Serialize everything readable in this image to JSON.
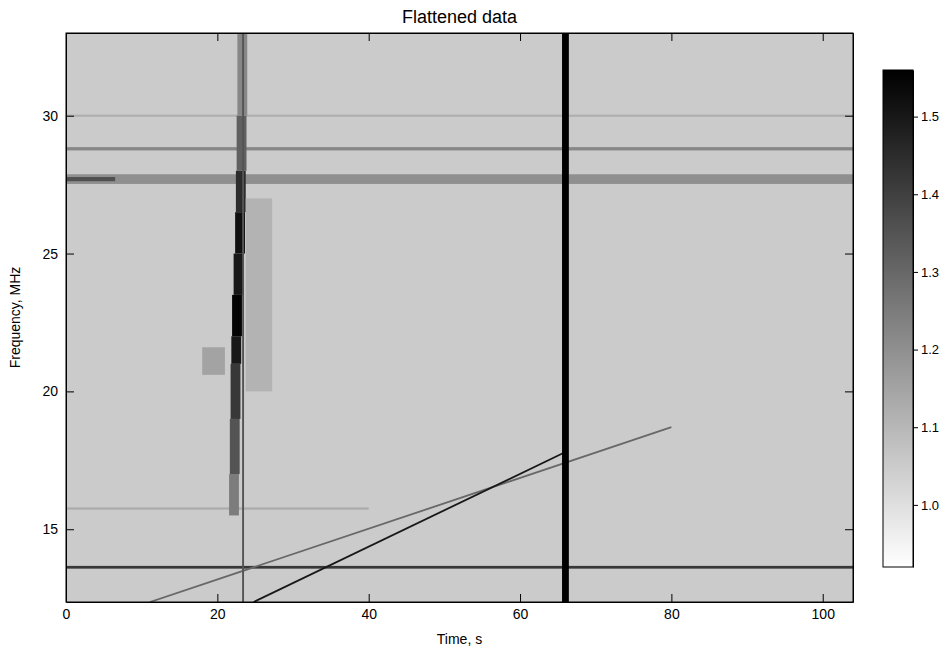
{
  "chart_data": {
    "type": "spectrogram",
    "title": "Flattened data",
    "x_label": "Time, s",
    "y_label": "Frequency, MHz",
    "xlim": [
      0,
      104
    ],
    "xticks": [
      0,
      20,
      40,
      60,
      80,
      100
    ],
    "ylim": [
      12.36,
      33
    ],
    "yticks": [
      15,
      20,
      25,
      30
    ],
    "background": 1.05,
    "colorbar": {
      "range": [
        0.92,
        1.56
      ],
      "ticks": [
        {
          "value": 1,
          "label": "1.0"
        },
        1.1,
        1.2,
        1.3,
        1.4,
        1.5
      ]
    },
    "bands": [
      {
        "freq": 13.62,
        "width": 0.1,
        "t_start": 0,
        "t_end": 104,
        "value": 1.42
      },
      {
        "freq": 15.75,
        "width": 0.08,
        "t_start": 0,
        "t_end": 40,
        "value": 1.13
      },
      {
        "freq": 27.7,
        "width": 0.35,
        "t_start": 0,
        "t_end": 104,
        "value": 1.2
      },
      {
        "freq": 27.7,
        "width": 0.15,
        "t_start": 0,
        "t_end": 6.5,
        "value": 1.36
      },
      {
        "freq": 28.8,
        "width": 0.12,
        "t_start": 0,
        "t_end": 104,
        "value": 1.22
      },
      {
        "freq": 30.0,
        "width": 0.08,
        "t_start": 0,
        "t_end": 104,
        "value": 1.12
      }
    ],
    "burst": [
      {
        "time": 22.2,
        "duration": 1.3,
        "freq_lo": 15.5,
        "freq_hi": 17,
        "value": 1.25
      },
      {
        "time": 22.3,
        "duration": 1.3,
        "freq_lo": 17,
        "freq_hi": 19,
        "value": 1.35
      },
      {
        "time": 22.4,
        "duration": 1.3,
        "freq_lo": 19,
        "freq_hi": 21,
        "value": 1.42
      },
      {
        "time": 22.5,
        "duration": 1.3,
        "freq_lo": 21,
        "freq_hi": 22,
        "value": 1.5
      },
      {
        "time": 22.6,
        "duration": 1.3,
        "freq_lo": 22,
        "freq_hi": 23.5,
        "value": 1.55
      },
      {
        "time": 22.8,
        "duration": 1.3,
        "freq_lo": 23.5,
        "freq_hi": 25,
        "value": 1.5
      },
      {
        "time": 23.0,
        "duration": 1.3,
        "freq_lo": 25,
        "freq_hi": 26.5,
        "value": 1.52
      },
      {
        "time": 23.1,
        "duration": 1.3,
        "freq_lo": 26.5,
        "freq_hi": 28,
        "value": 1.45
      },
      {
        "time": 23.2,
        "duration": 1.3,
        "freq_lo": 28,
        "freq_hi": 30,
        "value": 1.32
      },
      {
        "time": 23.3,
        "duration": 1.3,
        "freq_lo": 30,
        "freq_hi": 33,
        "value": 1.22
      },
      {
        "time": 19.5,
        "duration": 3,
        "freq_lo": 20.6,
        "freq_hi": 21.6,
        "value": 1.15
      },
      {
        "time": 25.5,
        "duration": 3.5,
        "freq_lo": 20,
        "freq_hi": 27,
        "value": 1.11
      }
    ],
    "vlines": [
      {
        "time": 23.4,
        "width": 0.25,
        "value": 1.35
      },
      {
        "time": 66,
        "width": 0.9,
        "value": 1.56
      }
    ],
    "sweeps": [
      {
        "t0": 11.1,
        "f0": 12.36,
        "t1": 80,
        "f1": 18.7,
        "value": 1.3
      },
      {
        "t0": 24.8,
        "f0": 12.36,
        "t1": 66,
        "f1": 17.8,
        "value": 1.5
      }
    ]
  }
}
